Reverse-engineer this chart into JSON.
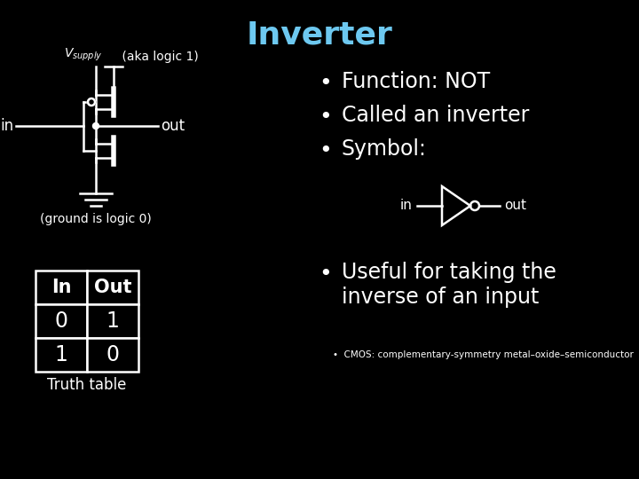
{
  "title": "Inverter",
  "title_color": "#6dc8f0",
  "title_fontsize": 26,
  "bg_color": "#000000",
  "fg_color": "#ffffff",
  "bullet_items": [
    "Function: NOT",
    "Called an inverter",
    "Symbol:"
  ],
  "bullet_fontsize": 17,
  "truth_table_headers": [
    "In",
    "Out"
  ],
  "truth_table_rows": [
    [
      "0",
      "1"
    ],
    [
      "1",
      "0"
    ]
  ],
  "vsupply_suffix": " (aka logic 1)",
  "ground_label": "(ground is logic 0)",
  "in_label": "in",
  "out_label": "out",
  "truth_table_label": "Truth table",
  "symbol_in_label": "in",
  "symbol_out_label": "out",
  "cmos_note": "CMOS: complementary-symmetry metal–oxide–semiconductor",
  "useful_text": "Useful for taking the\ninverse of an input",
  "useful_fontsize": 17
}
